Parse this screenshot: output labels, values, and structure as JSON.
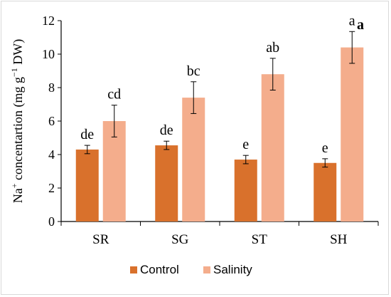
{
  "chart_data": {
    "type": "bar",
    "categories": [
      "SR",
      "SG",
      "ST",
      "SH"
    ],
    "series": [
      {
        "name": "Control",
        "color": "#d9712c",
        "values": [
          4.3,
          4.55,
          3.7,
          3.5
        ],
        "errors": [
          0.25,
          0.25,
          0.25,
          0.25
        ],
        "labels": [
          "de",
          "de",
          "e",
          "e"
        ]
      },
      {
        "name": "Salinity",
        "color": "#f4ad8c",
        "values": [
          6.0,
          7.4,
          8.8,
          10.4
        ],
        "errors": [
          0.95,
          0.95,
          0.95,
          0.95
        ],
        "labels": [
          "cd",
          "bc",
          "ab",
          "a"
        ]
      }
    ],
    "ylabel": {
      "prefix": "Na",
      "sup1": "+",
      "middle": " concentartion (mg g",
      "sup2": "−1",
      "suffix": "  DW)"
    },
    "ylim": [
      0,
      12
    ],
    "yticks": [
      0,
      2,
      4,
      6,
      8,
      10,
      12
    ],
    "grid": false,
    "legend_position": "bottom",
    "annotation": "a"
  }
}
